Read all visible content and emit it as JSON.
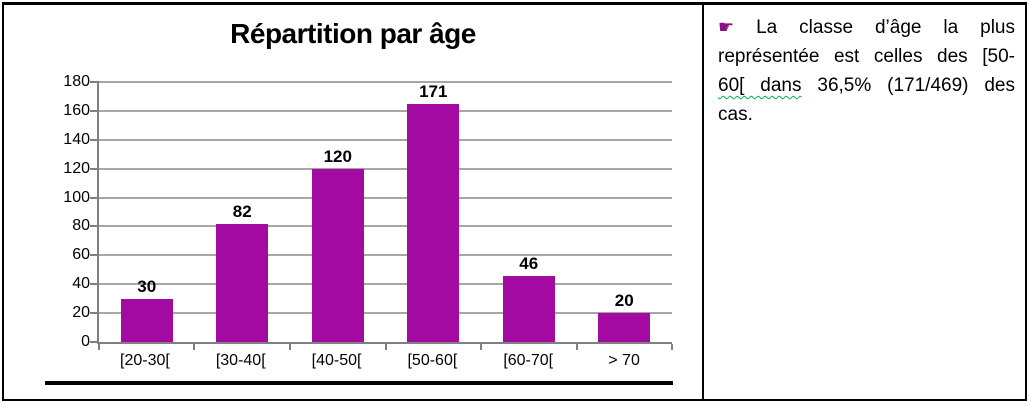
{
  "chart_data": {
    "type": "bar",
    "title": "Répartition par âge",
    "categories": [
      "[20-30[",
      "[30-40[",
      "[40-50[",
      "[50-60[",
      "[60-70[",
      "> 70"
    ],
    "values": [
      30,
      82,
      120,
      171,
      46,
      20
    ],
    "xlabel": "",
    "ylabel": "",
    "ylim": [
      0,
      180
    ],
    "yticks": [
      0,
      20,
      40,
      60,
      80,
      100,
      120,
      140,
      160,
      180
    ],
    "grid": true,
    "legend_position": "none",
    "bar_color": "#a20aa2",
    "value_labels_shown": true
  },
  "note": {
    "bullet_glyph": "☛",
    "line1": "La classe d’âge la plus",
    "line2": "représentée est celles des [50-",
    "line3_underlined": "60[ dans",
    "line3_rest": "36,5% (171/469) des",
    "line4": "cas.",
    "full_text": "La classe d’âge la plus représentée est celles des [50-60[ dans 36,5% (171/469) des cas."
  },
  "colors": {
    "bar": "#a20aa2",
    "gridline": "#a6a6a6",
    "axis": "#808080",
    "border": "#000000",
    "bullet": "#8b0f8b",
    "squiggle": "#00b050",
    "text": "#000000"
  }
}
